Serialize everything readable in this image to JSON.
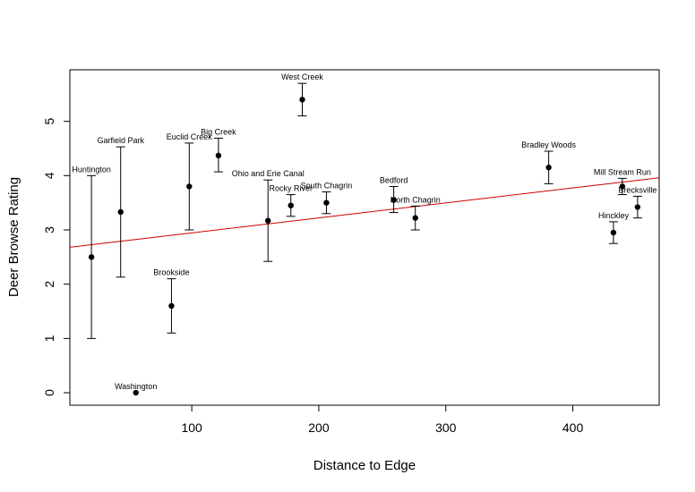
{
  "chart_data": {
    "type": "scatter",
    "title": "",
    "xlabel": "Distance to Edge",
    "ylabel": "Deer Browse Rating",
    "xlim": [
      4,
      468
    ],
    "ylim": [
      -0.23,
      5.95
    ],
    "x_ticks": [
      100,
      200,
      300,
      400
    ],
    "y_ticks": [
      0,
      1,
      2,
      3,
      4,
      5
    ],
    "grid": false,
    "legend": "none",
    "colors": {
      "points": "#000000",
      "error_bars": "#000000",
      "fit_line": "#cc0000"
    },
    "fit_line": {
      "x": [
        4,
        468
      ],
      "y": [
        2.68,
        3.96
      ]
    },
    "points": [
      {
        "label": "Huntington",
        "x": 21,
        "y": 2.5,
        "ymin": 1.0,
        "ymax": 4.0
      },
      {
        "label": "Garfield Park",
        "x": 44,
        "y": 3.33,
        "ymin": 2.13,
        "ymax": 4.53
      },
      {
        "label": "Washington",
        "x": 56,
        "y": 0.0,
        "ymin": 0.0,
        "ymax": 0.0
      },
      {
        "label": "Brookside",
        "x": 84,
        "y": 1.6,
        "ymin": 1.1,
        "ymax": 2.1
      },
      {
        "label": "Euclid Creek",
        "x": 98,
        "y": 3.8,
        "ymin": 3.0,
        "ymax": 4.6
      },
      {
        "label": "Big Creek",
        "x": 121,
        "y": 4.37,
        "ymin": 4.07,
        "ymax": 4.69
      },
      {
        "label": "Ohio and Erie Canal",
        "x": 160,
        "y": 3.17,
        "ymin": 2.42,
        "ymax": 3.92
      },
      {
        "label": "Rocky River",
        "x": 178,
        "y": 3.45,
        "ymin": 3.25,
        "ymax": 3.65
      },
      {
        "label": "West Creek",
        "x": 187,
        "y": 5.4,
        "ymin": 5.1,
        "ymax": 5.7
      },
      {
        "label": "South Chagrin",
        "x": 206,
        "y": 3.5,
        "ymin": 3.3,
        "ymax": 3.7
      },
      {
        "label": "Bedford",
        "x": 259,
        "y": 3.55,
        "ymin": 3.32,
        "ymax": 3.8
      },
      {
        "label": "North Chagrin",
        "x": 276,
        "y": 3.22,
        "ymin": 3.0,
        "ymax": 3.44
      },
      {
        "label": "Bradley Woods",
        "x": 381,
        "y": 4.15,
        "ymin": 3.85,
        "ymax": 4.45
      },
      {
        "label": "Hinckley",
        "x": 432,
        "y": 2.95,
        "ymin": 2.75,
        "ymax": 3.15
      },
      {
        "label": "Mill Stream Run",
        "x": 439,
        "y": 3.8,
        "ymin": 3.65,
        "ymax": 3.95
      },
      {
        "label": "Brecksville",
        "x": 451,
        "y": 3.42,
        "ymin": 3.22,
        "ymax": 3.62
      }
    ]
  }
}
